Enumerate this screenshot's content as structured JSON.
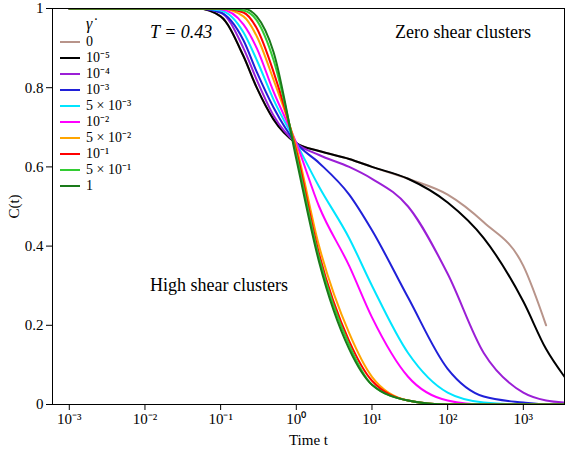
{
  "chart_data": {
    "type": "line",
    "x_label": "Time t",
    "y_label": "C(t)",
    "legend_title": "γ̇",
    "annotations": [
      "T = 0.43",
      "Zero shear clusters",
      "High shear clusters"
    ],
    "log": "x",
    "grid": false,
    "legend": "top-left",
    "xlim": [
      0.0006,
      3500
    ],
    "ylim": [
      0,
      1
    ],
    "xticks": [
      {
        "value": 0.001,
        "label": "10⁻³"
      },
      {
        "value": 0.01,
        "label": "10⁻²"
      },
      {
        "value": 0.1,
        "label": "10⁻¹"
      },
      {
        "value": 1,
        "label": "10⁰"
      },
      {
        "value": 10,
        "label": "10¹"
      },
      {
        "value": 100,
        "label": "10²"
      },
      {
        "value": 1000,
        "label": "10³"
      }
    ],
    "yticks": [
      0,
      0.2,
      0.4,
      0.6,
      0.8,
      1
    ],
    "x": [
      0.001,
      0.01,
      0.05,
      0.1,
      0.2,
      0.3,
      0.5,
      1,
      2,
      5,
      10,
      30,
      100,
      300,
      1000,
      2000,
      3500
    ],
    "series": [
      {
        "name": "0",
        "color": "#b8948a",
        "values": [
          1,
          1,
          1,
          0.98,
          0.88,
          0.8,
          0.72,
          0.66,
          0.64,
          0.62,
          0.6,
          0.57,
          0.53,
          0.46,
          0.35,
          0.2,
          null
        ]
      },
      {
        "name": "10⁻⁵",
        "color": "#000000",
        "values": [
          1,
          1,
          1,
          0.98,
          0.88,
          0.8,
          0.72,
          0.66,
          0.64,
          0.62,
          0.6,
          0.57,
          0.51,
          0.42,
          0.26,
          0.14,
          0.07
        ]
      },
      {
        "name": "10⁻⁴",
        "color": "#9b1fd6",
        "values": [
          1,
          1,
          1,
          0.99,
          0.9,
          0.82,
          0.73,
          0.66,
          0.63,
          0.6,
          0.57,
          0.5,
          0.33,
          0.13,
          0.03,
          0.01,
          0.005
        ]
      },
      {
        "name": "10⁻³",
        "color": "#2020d8",
        "values": [
          1,
          1,
          1,
          0.99,
          0.92,
          0.84,
          0.75,
          0.66,
          0.61,
          0.53,
          0.44,
          0.27,
          0.09,
          0.02,
          0.005,
          0,
          0
        ]
      },
      {
        "name": "5 × 10⁻³",
        "color": "#00e5ff",
        "values": [
          1,
          1,
          1,
          0.995,
          0.94,
          0.87,
          0.77,
          0.66,
          0.55,
          0.42,
          0.3,
          0.13,
          0.03,
          0.005,
          0,
          0,
          0
        ]
      },
      {
        "name": "10⁻²",
        "color": "#ff00ff",
        "values": [
          1,
          1,
          1,
          0.998,
          0.96,
          0.9,
          0.79,
          0.66,
          0.5,
          0.35,
          0.22,
          0.07,
          0.01,
          0,
          0,
          0,
          0
        ]
      },
      {
        "name": "5 × 10⁻²",
        "color": "#ffa500",
        "values": [
          1,
          1,
          1,
          1,
          0.98,
          0.93,
          0.82,
          0.65,
          0.4,
          0.18,
          0.07,
          0.01,
          0,
          0,
          0,
          0,
          0
        ]
      },
      {
        "name": "10⁻¹",
        "color": "#ff0000",
        "values": [
          1,
          1,
          1,
          1,
          0.99,
          0.95,
          0.84,
          0.64,
          0.38,
          0.16,
          0.06,
          0.01,
          0,
          0,
          0,
          0,
          0
        ]
      },
      {
        "name": "5 × 10⁻¹",
        "color": "#33cc33",
        "values": [
          1,
          1,
          1,
          1,
          0.995,
          0.97,
          0.87,
          0.63,
          0.37,
          0.15,
          0.05,
          0.01,
          0,
          0,
          0,
          0,
          0
        ]
      },
      {
        "name": "1",
        "color": "#1a7a1a",
        "values": [
          1,
          1,
          1,
          1,
          1,
          0.98,
          0.89,
          0.62,
          0.36,
          0.14,
          0.05,
          0.01,
          0,
          0,
          0,
          0,
          0
        ]
      }
    ]
  }
}
